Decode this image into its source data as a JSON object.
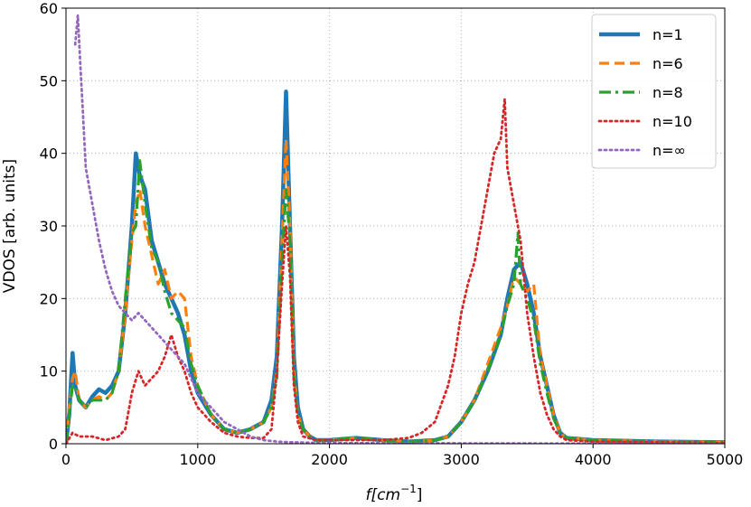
{
  "chart_data": {
    "type": "line",
    "title": "",
    "xlabel_main": "f",
    "xlabel_unit": "[cm",
    "xlabel_exp": "−1",
    "xlabel_close": "]",
    "ylabel": "VDOS [arb. units]",
    "xlim": [
      0,
      5000
    ],
    "ylim": [
      0,
      60
    ],
    "grid": true,
    "legend_position": "top-right",
    "x_ticks": [
      0,
      1000,
      2000,
      3000,
      4000,
      5000
    ],
    "x_tick_labels": [
      "0",
      "1000",
      "2000",
      "3000",
      "4000",
      "5000"
    ],
    "y_ticks": [
      0,
      10,
      20,
      30,
      40,
      50,
      60
    ],
    "y_tick_labels": [
      "0",
      "10",
      "20",
      "30",
      "40",
      "50",
      "60"
    ],
    "series": [
      {
        "name": "n=1",
        "color": "#1f77b4",
        "style": "solid",
        "width": 4.5,
        "points": [
          [
            0,
            0
          ],
          [
            25,
            4
          ],
          [
            50,
            12.5
          ],
          [
            70,
            8
          ],
          [
            100,
            6
          ],
          [
            150,
            5
          ],
          [
            200,
            6.5
          ],
          [
            250,
            7.5
          ],
          [
            300,
            7
          ],
          [
            350,
            8
          ],
          [
            400,
            10
          ],
          [
            450,
            18
          ],
          [
            500,
            30
          ],
          [
            530,
            40
          ],
          [
            560,
            37
          ],
          [
            600,
            35
          ],
          [
            650,
            28
          ],
          [
            700,
            25
          ],
          [
            750,
            22
          ],
          [
            800,
            20
          ],
          [
            850,
            18
          ],
          [
            900,
            15
          ],
          [
            950,
            10
          ],
          [
            1000,
            7
          ],
          [
            1100,
            4
          ],
          [
            1200,
            2
          ],
          [
            1300,
            1.5
          ],
          [
            1400,
            2
          ],
          [
            1500,
            3
          ],
          [
            1560,
            6
          ],
          [
            1600,
            12
          ],
          [
            1640,
            30
          ],
          [
            1670,
            48.5
          ],
          [
            1700,
            30
          ],
          [
            1730,
            12
          ],
          [
            1760,
            5
          ],
          [
            1800,
            2
          ],
          [
            1850,
            1
          ],
          [
            1900,
            0.5
          ],
          [
            2000,
            0.5
          ],
          [
            2200,
            0.8
          ],
          [
            2400,
            0.5
          ],
          [
            2600,
            0.3
          ],
          [
            2800,
            0.5
          ],
          [
            2900,
            1
          ],
          [
            3000,
            3
          ],
          [
            3100,
            6
          ],
          [
            3200,
            10
          ],
          [
            3300,
            15
          ],
          [
            3350,
            20
          ],
          [
            3400,
            24
          ],
          [
            3450,
            25
          ],
          [
            3500,
            22
          ],
          [
            3550,
            18
          ],
          [
            3600,
            12
          ],
          [
            3650,
            8
          ],
          [
            3700,
            4
          ],
          [
            3750,
            1.5
          ],
          [
            3800,
            0.8
          ],
          [
            4000,
            0.5
          ],
          [
            4500,
            0.3
          ],
          [
            5000,
            0.2
          ]
        ]
      },
      {
        "name": "n=6",
        "color": "#ff7f0e",
        "style": "dashed",
        "width": 3.2,
        "points": [
          [
            0,
            0
          ],
          [
            25,
            5
          ],
          [
            50,
            9
          ],
          [
            70,
            10
          ],
          [
            100,
            6
          ],
          [
            150,
            5
          ],
          [
            200,
            6
          ],
          [
            250,
            6.5
          ],
          [
            300,
            6
          ],
          [
            350,
            7
          ],
          [
            400,
            10
          ],
          [
            450,
            18
          ],
          [
            500,
            28
          ],
          [
            530,
            33
          ],
          [
            560,
            35
          ],
          [
            600,
            30
          ],
          [
            650,
            26
          ],
          [
            700,
            22
          ],
          [
            750,
            24
          ],
          [
            800,
            20
          ],
          [
            850,
            21
          ],
          [
            900,
            20
          ],
          [
            950,
            12
          ],
          [
            1000,
            8
          ],
          [
            1100,
            4
          ],
          [
            1200,
            2
          ],
          [
            1300,
            1.5
          ],
          [
            1400,
            2
          ],
          [
            1500,
            3
          ],
          [
            1560,
            5
          ],
          [
            1600,
            10
          ],
          [
            1640,
            28
          ],
          [
            1670,
            42
          ],
          [
            1700,
            30
          ],
          [
            1730,
            10
          ],
          [
            1760,
            4
          ],
          [
            1800,
            2
          ],
          [
            1850,
            1
          ],
          [
            1900,
            0.5
          ],
          [
            2000,
            0.5
          ],
          [
            2200,
            0.8
          ],
          [
            2400,
            0.5
          ],
          [
            2600,
            0.3
          ],
          [
            2800,
            0.5
          ],
          [
            2900,
            1
          ],
          [
            3000,
            3
          ],
          [
            3100,
            6
          ],
          [
            3200,
            11
          ],
          [
            3300,
            16
          ],
          [
            3350,
            19
          ],
          [
            3400,
            23
          ],
          [
            3450,
            22
          ],
          [
            3500,
            21
          ],
          [
            3550,
            22
          ],
          [
            3600,
            12
          ],
          [
            3650,
            8
          ],
          [
            3700,
            4
          ],
          [
            3750,
            1.5
          ],
          [
            3800,
            0.8
          ],
          [
            4000,
            0.5
          ],
          [
            4500,
            0.3
          ],
          [
            5000,
            0.2
          ]
        ]
      },
      {
        "name": "n=8",
        "color": "#2ca02c",
        "style": "dashdot",
        "width": 3.2,
        "points": [
          [
            0,
            0
          ],
          [
            25,
            4
          ],
          [
            50,
            8
          ],
          [
            70,
            8
          ],
          [
            100,
            6
          ],
          [
            150,
            5
          ],
          [
            200,
            6
          ],
          [
            250,
            6
          ],
          [
            300,
            6
          ],
          [
            350,
            7
          ],
          [
            400,
            10
          ],
          [
            450,
            20
          ],
          [
            500,
            29
          ],
          [
            530,
            30
          ],
          [
            560,
            39
          ],
          [
            600,
            33
          ],
          [
            650,
            27
          ],
          [
            700,
            25
          ],
          [
            750,
            21
          ],
          [
            800,
            18
          ],
          [
            850,
            17
          ],
          [
            900,
            16
          ],
          [
            950,
            11
          ],
          [
            1000,
            8
          ],
          [
            1100,
            4
          ],
          [
            1200,
            2
          ],
          [
            1300,
            1.5
          ],
          [
            1400,
            2
          ],
          [
            1500,
            3
          ],
          [
            1560,
            5
          ],
          [
            1600,
            9
          ],
          [
            1640,
            25
          ],
          [
            1670,
            35
          ],
          [
            1700,
            28
          ],
          [
            1730,
            9
          ],
          [
            1760,
            4
          ],
          [
            1800,
            2
          ],
          [
            1850,
            1
          ],
          [
            1900,
            0.5
          ],
          [
            2000,
            0.5
          ],
          [
            2200,
            0.8
          ],
          [
            2400,
            0.5
          ],
          [
            2600,
            0.3
          ],
          [
            2800,
            0.5
          ],
          [
            2900,
            1
          ],
          [
            3000,
            3
          ],
          [
            3100,
            6
          ],
          [
            3200,
            10
          ],
          [
            3300,
            15
          ],
          [
            3350,
            19
          ],
          [
            3400,
            22
          ],
          [
            3430,
            29
          ],
          [
            3450,
            22
          ],
          [
            3500,
            20
          ],
          [
            3550,
            17
          ],
          [
            3600,
            11
          ],
          [
            3650,
            7
          ],
          [
            3700,
            3.5
          ],
          [
            3750,
            1.5
          ],
          [
            3800,
            0.8
          ],
          [
            4000,
            0.5
          ],
          [
            4500,
            0.3
          ],
          [
            5000,
            0.2
          ]
        ]
      },
      {
        "name": "n=10",
        "color": "#d62728",
        "style": "dotted",
        "width": 2.8,
        "points": [
          [
            0,
            0
          ],
          [
            50,
            1.5
          ],
          [
            100,
            1
          ],
          [
            200,
            1
          ],
          [
            300,
            0.5
          ],
          [
            400,
            1
          ],
          [
            450,
            2
          ],
          [
            500,
            7
          ],
          [
            550,
            10
          ],
          [
            600,
            8
          ],
          [
            650,
            9
          ],
          [
            700,
            10
          ],
          [
            750,
            12
          ],
          [
            800,
            15
          ],
          [
            850,
            12
          ],
          [
            900,
            10
          ],
          [
            950,
            7
          ],
          [
            1000,
            5
          ],
          [
            1100,
            3
          ],
          [
            1200,
            1.5
          ],
          [
            1300,
            1
          ],
          [
            1400,
            0.8
          ],
          [
            1500,
            0.8
          ],
          [
            1560,
            2
          ],
          [
            1600,
            10
          ],
          [
            1640,
            22
          ],
          [
            1670,
            30
          ],
          [
            1700,
            23
          ],
          [
            1730,
            8
          ],
          [
            1760,
            3
          ],
          [
            1800,
            1
          ],
          [
            1900,
            0.5
          ],
          [
            2000,
            0.5
          ],
          [
            2200,
            0.5
          ],
          [
            2400,
            0.5
          ],
          [
            2600,
            0.8
          ],
          [
            2700,
            1.5
          ],
          [
            2800,
            3
          ],
          [
            2900,
            8
          ],
          [
            2950,
            12
          ],
          [
            3000,
            18
          ],
          [
            3050,
            22
          ],
          [
            3100,
            25
          ],
          [
            3150,
            30
          ],
          [
            3200,
            35
          ],
          [
            3250,
            40
          ],
          [
            3300,
            42
          ],
          [
            3330,
            47.5
          ],
          [
            3350,
            38
          ],
          [
            3400,
            33
          ],
          [
            3450,
            28
          ],
          [
            3500,
            18
          ],
          [
            3550,
            12
          ],
          [
            3600,
            7
          ],
          [
            3650,
            4
          ],
          [
            3700,
            2
          ],
          [
            3750,
            1
          ],
          [
            3800,
            0.5
          ],
          [
            4000,
            0.3
          ],
          [
            4500,
            0.2
          ],
          [
            5000,
            0.1
          ]
        ]
      },
      {
        "name": "n=∞",
        "color": "#9467bd",
        "style": "dotted",
        "width": 2.8,
        "points": [
          [
            70,
            55
          ],
          [
            90,
            59
          ],
          [
            110,
            52
          ],
          [
            130,
            45
          ],
          [
            150,
            38
          ],
          [
            200,
            33
          ],
          [
            250,
            28
          ],
          [
            300,
            24
          ],
          [
            350,
            21
          ],
          [
            400,
            19
          ],
          [
            450,
            18
          ],
          [
            500,
            17
          ],
          [
            550,
            18
          ],
          [
            600,
            17
          ],
          [
            650,
            16
          ],
          [
            700,
            15
          ],
          [
            750,
            14
          ],
          [
            800,
            13
          ],
          [
            850,
            12
          ],
          [
            900,
            11
          ],
          [
            950,
            9
          ],
          [
            1000,
            7
          ],
          [
            1100,
            5
          ],
          [
            1200,
            3
          ],
          [
            1300,
            2
          ],
          [
            1400,
            1
          ],
          [
            1500,
            0.5
          ],
          [
            1600,
            0.3
          ],
          [
            1700,
            0.2
          ],
          [
            2000,
            0.1
          ],
          [
            3000,
            0.05
          ],
          [
            5000,
            0
          ]
        ]
      }
    ]
  }
}
